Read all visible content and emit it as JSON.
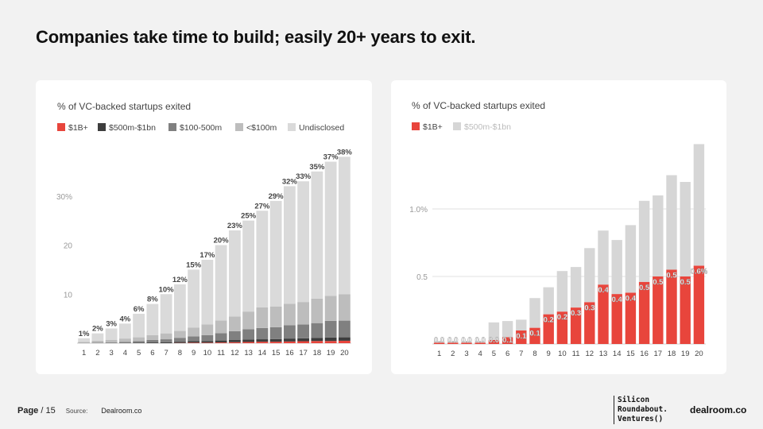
{
  "page": {
    "title": "Companies take time to build; easily 20+ years to exit.",
    "footer": {
      "page_label": "Page",
      "page_number": "/ 15",
      "source_label": "Source:",
      "source": "Dealroom.co"
    },
    "brand_lines": [
      "Silicon",
      "Roundabout.",
      "Ventures()"
    ],
    "brand2": "dealroom.co"
  },
  "chart_data": [
    {
      "type": "bar",
      "stacked": true,
      "title": "% of VC-backed startups exited",
      "categories": [
        "1",
        "2",
        "3",
        "4",
        "5",
        "6",
        "7",
        "8",
        "9",
        "10",
        "11",
        "12",
        "13",
        "14",
        "15",
        "16",
        "17",
        "18",
        "19",
        "20"
      ],
      "ylim": [
        0,
        40
      ],
      "yticks": [
        10,
        20,
        30
      ],
      "ytick_labels": [
        "10",
        "20",
        "30%"
      ],
      "grid": false,
      "legend": "top-left",
      "series": [
        {
          "name": "$1B+",
          "color": "#e8453c",
          "values": [
            0,
            0,
            0,
            0,
            0,
            0,
            0,
            0.05,
            0.1,
            0.1,
            0.15,
            0.2,
            0.25,
            0.3,
            0.3,
            0.35,
            0.4,
            0.45,
            0.45,
            0.5
          ]
        },
        {
          "name": "$500m-$1bn",
          "color": "#3d3d3d",
          "values": [
            0,
            0,
            0,
            0.05,
            0.1,
            0.15,
            0.2,
            0.25,
            0.3,
            0.35,
            0.4,
            0.45,
            0.5,
            0.5,
            0.55,
            0.6,
            0.6,
            0.65,
            0.7,
            0.7
          ]
        },
        {
          "name": "$100-500m",
          "color": "#808080",
          "values": [
            0.05,
            0.1,
            0.15,
            0.2,
            0.3,
            0.5,
            0.6,
            0.8,
            1.0,
            1.2,
            1.5,
            1.8,
            2.1,
            2.3,
            2.4,
            2.7,
            2.8,
            3.0,
            3.4,
            3.4
          ]
        },
        {
          "name": "<$100m",
          "color": "#bdbdbd",
          "values": [
            0.2,
            0.4,
            0.5,
            0.7,
            0.8,
            1.0,
            1.2,
            1.4,
            1.8,
            2.2,
            2.6,
            3.0,
            3.6,
            4.2,
            4.2,
            4.4,
            4.6,
            5.0,
            5.1,
            5.4
          ]
        },
        {
          "name": "Undisclosed",
          "color": "#dadada",
          "values": [
            0.75,
            1.5,
            2.35,
            3.05,
            4.8,
            6.35,
            8.0,
            9.5,
            11.8,
            13.15,
            15.35,
            17.55,
            18.55,
            19.7,
            21.55,
            23.95,
            24.6,
            25.9,
            27.35,
            28.0
          ]
        }
      ],
      "totals_labels": [
        "1%",
        "2%",
        "3%",
        "4%",
        "6%",
        "8%",
        "10%",
        "12%",
        "15%",
        "17%",
        "20%",
        "23%",
        "25%",
        "27%",
        "29%",
        "32%",
        "33%",
        "35%",
        "37%",
        "38%"
      ]
    },
    {
      "type": "bar",
      "stacked": true,
      "title": "% of VC-backed startups exited",
      "categories": [
        "1",
        "2",
        "3",
        "4",
        "5",
        "6",
        "7",
        "8",
        "9",
        "10",
        "11",
        "12",
        "13",
        "14",
        "15",
        "16",
        "17",
        "18",
        "19",
        "20"
      ],
      "ylim": [
        0,
        1.6
      ],
      "yticks": [
        0.5,
        1.0
      ],
      "ytick_labels": [
        "0.5",
        "1.0%"
      ],
      "grid": true,
      "legend": "top-left",
      "series": [
        {
          "name": "$1B+",
          "color": "#e8453c",
          "values": [
            0.01,
            0.01,
            0.01,
            0.01,
            0.03,
            0.05,
            0.1,
            0.12,
            0.22,
            0.24,
            0.27,
            0.31,
            0.44,
            0.37,
            0.38,
            0.46,
            0.5,
            0.55,
            0.5,
            0.58
          ]
        },
        {
          "name": "$500m-$1bn",
          "color": "#d6d6d6",
          "values": [
            0.01,
            0.01,
            0.01,
            0.01,
            0.13,
            0.12,
            0.08,
            0.22,
            0.2,
            0.3,
            0.3,
            0.4,
            0.4,
            0.4,
            0.5,
            0.6,
            0.6,
            0.7,
            0.7,
            0.9
          ]
        }
      ],
      "bar_labels": [
        "0.0",
        "0.0",
        "0.0",
        "0.0",
        "0.0",
        "0.1",
        "0.1",
        "0.1",
        "0.2",
        "0.2",
        "0.3",
        "0.3",
        "0.4",
        "0.4",
        "0.4",
        "0.5",
        "0.5",
        "0.5",
        "0.5",
        "0.6%"
      ]
    }
  ]
}
